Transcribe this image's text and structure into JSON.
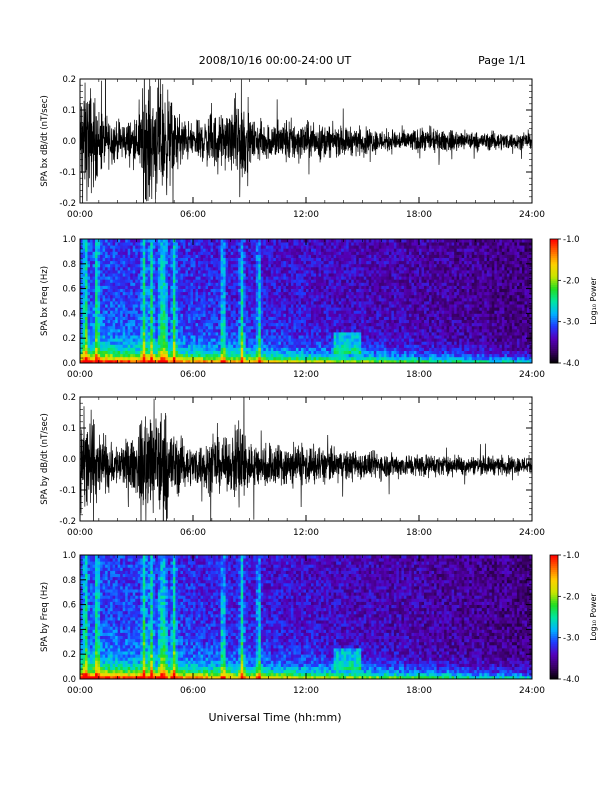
{
  "header": {
    "title": "2008/10/16  00:00-24:00 UT",
    "page": "Page 1/1"
  },
  "xaxis": {
    "label": "Universal Time (hh:mm)",
    "ticks": [
      "00:00",
      "06:00",
      "12:00",
      "18:00",
      "24:00"
    ],
    "range_hours": [
      0,
      24
    ]
  },
  "colorbar": {
    "label": "Log₁₀ Power",
    "ticks": [
      "-1.0",
      "-2.0",
      "-3.0",
      "-4.0"
    ],
    "range": [
      -4.0,
      -1.0
    ],
    "colors": [
      "#000000",
      "#3a0066",
      "#5500bb",
      "#1f3cff",
      "#00b4ff",
      "#00e6a0",
      "#22dd22",
      "#c8e600",
      "#ffd000",
      "#ff6a00",
      "#ff0000"
    ]
  },
  "chart_data": [
    {
      "type": "line",
      "ylabel": "SPA bx dB/dt (nT/sec)",
      "ylim": [
        -0.2,
        0.2
      ],
      "yticks": [
        "0.2",
        "0.1",
        "0.0",
        "-0.1",
        "-0.2"
      ],
      "envelope": {
        "x_hours": [
          0,
          0.5,
          1,
          2,
          3,
          3.5,
          4,
          4.5,
          5,
          5.5,
          6,
          7,
          8,
          8.5,
          9,
          10,
          11,
          12,
          13,
          14,
          15,
          16,
          17,
          18,
          19,
          20,
          21,
          22,
          23,
          24
        ],
        "amplitude": [
          0.22,
          0.25,
          0.14,
          0.08,
          0.1,
          0.25,
          0.25,
          0.25,
          0.14,
          0.1,
          0.07,
          0.12,
          0.1,
          0.25,
          0.09,
          0.08,
          0.1,
          0.08,
          0.07,
          0.06,
          0.06,
          0.05,
          0.05,
          0.05,
          0.045,
          0.045,
          0.04,
          0.04,
          0.035,
          0.03
        ],
        "baseline": 0.0
      }
    },
    {
      "type": "heatmap",
      "ylabel": "SPA bx Freq (Hz)",
      "ylim": [
        0.0,
        1.0
      ],
      "yticks": [
        "1.0",
        "0.8",
        "0.6",
        "0.4",
        "0.2",
        "0.0"
      ],
      "zlabel": "Log₁₀ Power",
      "bands_hours": [
        0.3,
        0.9,
        3.4,
        3.8,
        4.3,
        4.5,
        5.0,
        7.6,
        8.6,
        9.5
      ]
    },
    {
      "type": "line",
      "ylabel": "SPA by dB/dt (nT/sec)",
      "ylim": [
        -0.2,
        0.2
      ],
      "yticks": [
        "0.2",
        "0.1",
        "0.0",
        "-0.1",
        "-0.2"
      ],
      "envelope": {
        "x_hours": [
          0,
          0.5,
          1,
          2,
          3,
          3.5,
          4,
          4.5,
          5,
          5.5,
          6,
          7,
          8,
          8.5,
          9,
          10,
          11,
          12,
          13,
          14,
          15,
          16,
          17,
          18,
          19,
          20,
          21,
          22,
          23,
          24
        ],
        "amplitude": [
          0.2,
          0.25,
          0.14,
          0.09,
          0.12,
          0.25,
          0.25,
          0.25,
          0.15,
          0.1,
          0.08,
          0.12,
          0.1,
          0.25,
          0.1,
          0.1,
          0.1,
          0.09,
          0.08,
          0.07,
          0.06,
          0.06,
          0.05,
          0.05,
          0.045,
          0.04,
          0.04,
          0.04,
          0.04,
          0.04
        ],
        "baseline": -0.02
      }
    },
    {
      "type": "heatmap",
      "ylabel": "SPA by Freq (Hz)",
      "ylim": [
        0.0,
        1.0
      ],
      "yticks": [
        "1.0",
        "0.8",
        "0.6",
        "0.4",
        "0.2",
        "0.0"
      ],
      "zlabel": "Log₁₀ Power",
      "bands_hours": [
        0.3,
        0.9,
        3.4,
        3.8,
        4.3,
        4.5,
        5.0,
        7.6,
        8.6,
        9.5
      ]
    }
  ]
}
